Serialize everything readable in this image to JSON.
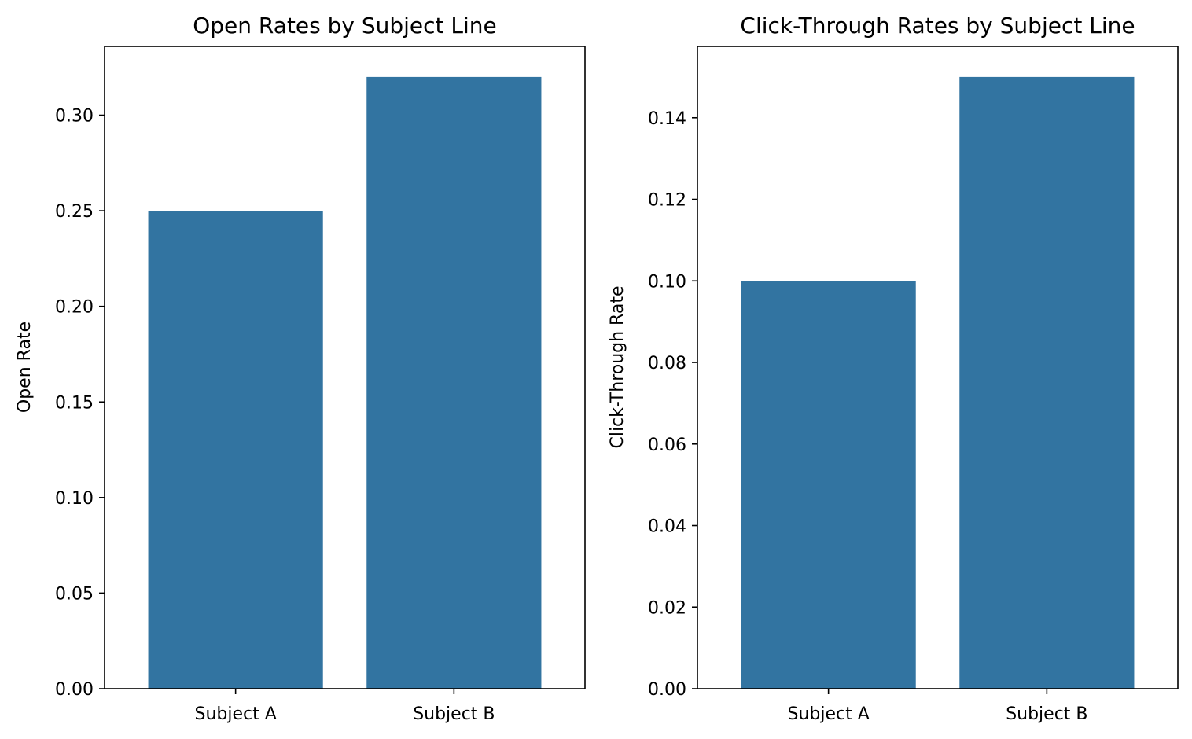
{
  "chart_data": [
    {
      "type": "bar",
      "title": "Open Rates by Subject Line",
      "xlabel": "",
      "ylabel": "Open Rate",
      "categories": [
        "Subject A",
        "Subject B"
      ],
      "values": [
        0.25,
        0.32
      ],
      "ylim": [
        0,
        0.336
      ],
      "yticks": [
        "0.00",
        "0.05",
        "0.10",
        "0.15",
        "0.20",
        "0.25",
        "0.30"
      ],
      "grid": false,
      "bar_color": "#3274a1"
    },
    {
      "type": "bar",
      "title": "Click-Through Rates by Subject Line",
      "xlabel": "",
      "ylabel": "Click-Through Rate",
      "categories": [
        "Subject A",
        "Subject B"
      ],
      "values": [
        0.1,
        0.15
      ],
      "ylim": [
        0,
        0.1575
      ],
      "yticks": [
        "0.00",
        "0.02",
        "0.04",
        "0.06",
        "0.08",
        "0.10",
        "0.12",
        "0.14"
      ],
      "grid": false,
      "bar_color": "#3274a1"
    }
  ]
}
